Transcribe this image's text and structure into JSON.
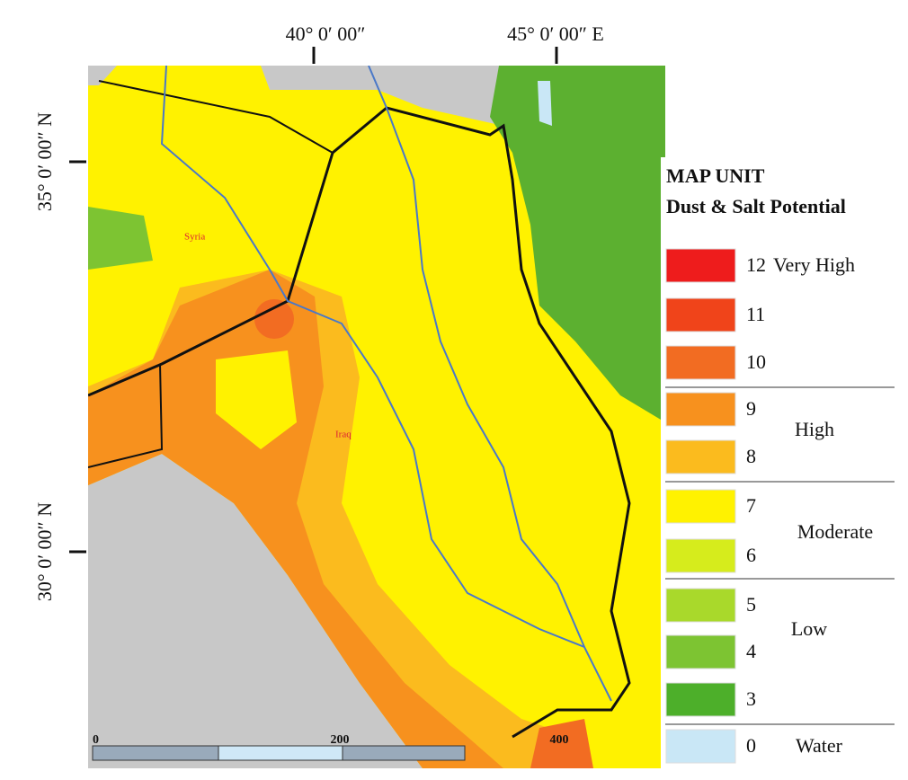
{
  "coordinates": {
    "top": [
      "40° 0′ 00″",
      "45° 0′ 00″ E"
    ],
    "left": [
      "35° 0′ 00″ N",
      "30° 0′ 00″ N"
    ]
  },
  "places": [
    "Syria",
    "Iraq"
  ],
  "scale": [
    "0",
    "200",
    "400"
  ],
  "legend": {
    "title": [
      "MAP UNIT",
      "Dust & Salt Potential"
    ],
    "units": [
      {
        "code": "12",
        "note": "Very High",
        "color": "#ee1c1c"
      },
      {
        "code": "11",
        "color": "#f0441a"
      },
      {
        "code": "10",
        "color": "#f26c22"
      },
      {
        "code": "9",
        "color": "#f7911e"
      },
      {
        "code": "8",
        "color": "#fbbb1e"
      },
      {
        "code": "7",
        "color": "#fff200"
      },
      {
        "code": "6",
        "color": "#d6ec1c"
      },
      {
        "code": "5",
        "color": "#a9d92b"
      },
      {
        "code": "4",
        "color": "#7dc432"
      },
      {
        "code": "3",
        "color": "#4daf2a"
      },
      {
        "code": "0",
        "note": "Water",
        "color": "#c9e7f6"
      }
    ],
    "groups": [
      "High",
      "Moderate",
      "Low"
    ]
  }
}
